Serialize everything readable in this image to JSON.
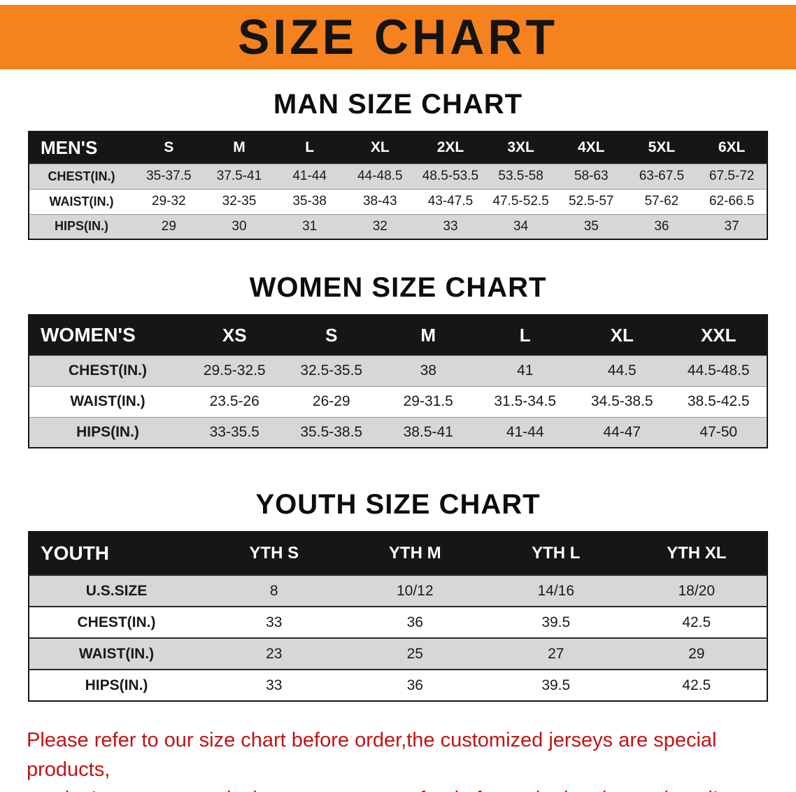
{
  "banner": {
    "title": "SIZE CHART"
  },
  "sections": [
    {
      "id": "men",
      "heading": "MAN SIZE CHART",
      "table": {
        "header": [
          "MEN'S",
          "S",
          "M",
          "L",
          "XL",
          "2XL",
          "3XL",
          "4XL",
          "5XL",
          "6XL"
        ],
        "rows": [
          [
            "CHEST(IN.)",
            "35-37.5",
            "37.5-41",
            "41-44",
            "44-48.5",
            "48.5-53.5",
            "53.5-58",
            "58-63",
            "63-67.5",
            "67.5-72"
          ],
          [
            "WAIST(IN.)",
            "29-32",
            "32-35",
            "35-38",
            "38-43",
            "43-47.5",
            "47.5-52.5",
            "52.5-57",
            "57-62",
            "62-66.5"
          ],
          [
            "HIPS(IN.)",
            "29",
            "30",
            "31",
            "32",
            "33",
            "34",
            "35",
            "36",
            "37"
          ]
        ]
      }
    },
    {
      "id": "women",
      "heading": "WOMEN SIZE CHART",
      "table": {
        "header": [
          "WOMEN'S",
          "XS",
          "S",
          "M",
          "L",
          "XL",
          "XXL"
        ],
        "rows": [
          [
            "CHEST(IN.)",
            "29.5-32.5",
            "32.5-35.5",
            "38",
            "41",
            "44.5",
            "44.5-48.5"
          ],
          [
            "WAIST(IN.)",
            "23.5-26",
            "26-29",
            "29-31.5",
            "31.5-34.5",
            "34.5-38.5",
            "38.5-42.5"
          ],
          [
            "HIPS(IN.)",
            "33-35.5",
            "35.5-38.5",
            "38.5-41",
            "41-44",
            "44-47",
            "47-50"
          ]
        ]
      }
    },
    {
      "id": "youth",
      "heading": "YOUTH SIZE CHART",
      "table": {
        "header": [
          "YOUTH",
          "YTH S",
          "YTH M",
          "YTH L",
          "YTH XL"
        ],
        "rows": [
          [
            "U.S.SIZE",
            "8",
            "10/12",
            "14/16",
            "18/20"
          ],
          [
            "CHEST(IN.)",
            "33",
            "36",
            "39.5",
            "42.5"
          ],
          [
            "WAIST(IN.)",
            "23",
            "25",
            "27",
            "29"
          ],
          [
            "HIPS(IN.)",
            "33",
            "36",
            "39.5",
            "42.5"
          ]
        ]
      }
    }
  ],
  "disclaimer": {
    "line1": "Please refer to our size chart before order,the customized jerseys are special products,",
    "line2": "we don't accept cancel, change, teturn or refund after order has been placed!"
  },
  "colors": {
    "banner_orange": "#F5821F",
    "header_black": "#161616",
    "stripe_gray": "#d7d7d7",
    "disclaimer_red": "#c31313"
  }
}
